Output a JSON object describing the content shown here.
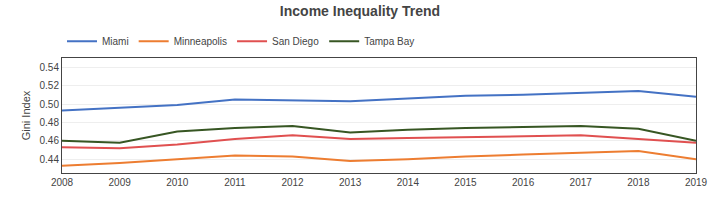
{
  "chart_data": {
    "type": "line",
    "title": "Income Inequality Trend",
    "ylabel": "Gini Index",
    "x": [
      2008,
      2009,
      2010,
      2011,
      2012,
      2013,
      2014,
      2015,
      2016,
      2017,
      2018,
      2019
    ],
    "series": [
      {
        "name": "Miami",
        "color": "#4472C4",
        "values": [
          0.493,
          0.496,
          0.499,
          0.505,
          0.504,
          0.503,
          0.506,
          0.509,
          0.51,
          0.512,
          0.514,
          0.508
        ]
      },
      {
        "name": "Minneapolis",
        "color": "#ED7D31",
        "values": [
          0.433,
          0.436,
          0.44,
          0.444,
          0.443,
          0.438,
          0.44,
          0.443,
          0.445,
          0.447,
          0.449,
          0.44
        ]
      },
      {
        "name": "San Diego",
        "color": "#E05050",
        "values": [
          0.453,
          0.452,
          0.456,
          0.462,
          0.466,
          0.462,
          0.463,
          0.464,
          0.465,
          0.466,
          0.462,
          0.458
        ]
      },
      {
        "name": "Tampa Bay",
        "color": "#375623",
        "values": [
          0.46,
          0.458,
          0.47,
          0.474,
          0.476,
          0.469,
          0.472,
          0.474,
          0.475,
          0.476,
          0.473,
          0.46
        ]
      }
    ],
    "xlim": [
      2008,
      2019
    ],
    "xticks": [
      2008,
      2009,
      2010,
      2011,
      2012,
      2013,
      2014,
      2015,
      2016,
      2017,
      2018,
      2019
    ],
    "ylim": [
      0.425,
      0.55
    ],
    "yticks": [
      0.44,
      0.46,
      0.48,
      {
        "value": 0.5,
        "label": "0.50"
      },
      0.52,
      0.54
    ],
    "grid": true,
    "legend": "upper left"
  }
}
